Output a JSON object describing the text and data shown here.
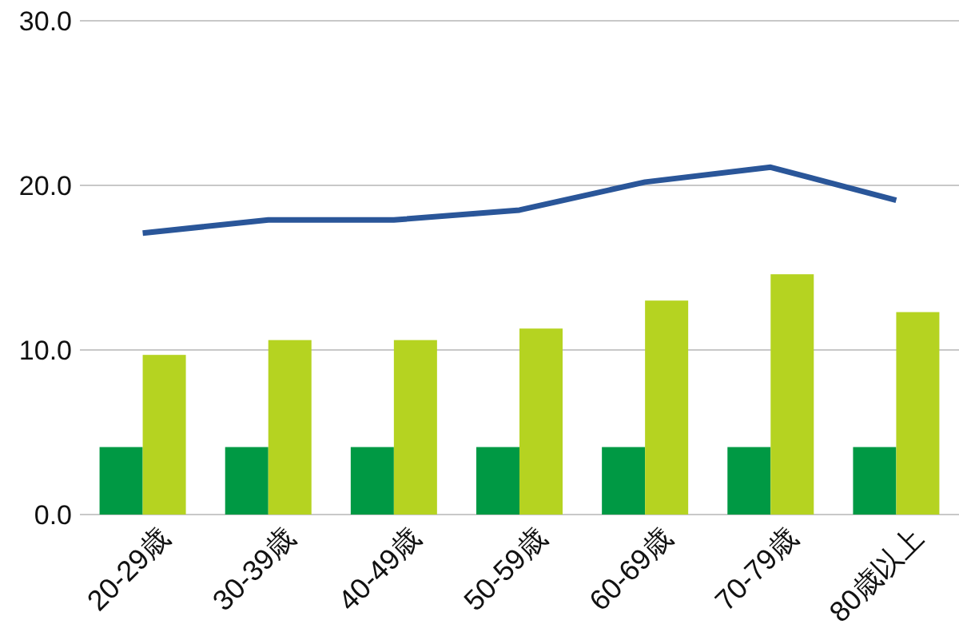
{
  "chart_data": {
    "type": "bar",
    "categories": [
      "20-29歳",
      "30-39歳",
      "40-49歳",
      "50-59歳",
      "60-69歳",
      "70-79歳",
      "80歳以上"
    ],
    "series": [
      {
        "color": "#009944",
        "values": [
          4.1,
          4.1,
          4.1,
          4.1,
          4.1,
          4.1,
          4.1
        ]
      },
      {
        "color": "#b5d321",
        "values": [
          9.7,
          10.6,
          10.6,
          11.3,
          13.0,
          14.6,
          12.3
        ]
      },
      {
        "type": "line",
        "color": "#2a5699",
        "values": [
          17.1,
          17.9,
          17.9,
          18.5,
          20.2,
          21.1,
          19.1
        ]
      }
    ],
    "ylim": [
      0,
      30
    ],
    "yticks": [
      {
        "value": 0,
        "label": "0.0"
      },
      {
        "value": 10,
        "label": "10.0"
      },
      {
        "value": 20,
        "label": "20.0"
      },
      {
        "value": 30,
        "label": "30.0"
      }
    ],
    "grid": "y",
    "marker": "none"
  }
}
